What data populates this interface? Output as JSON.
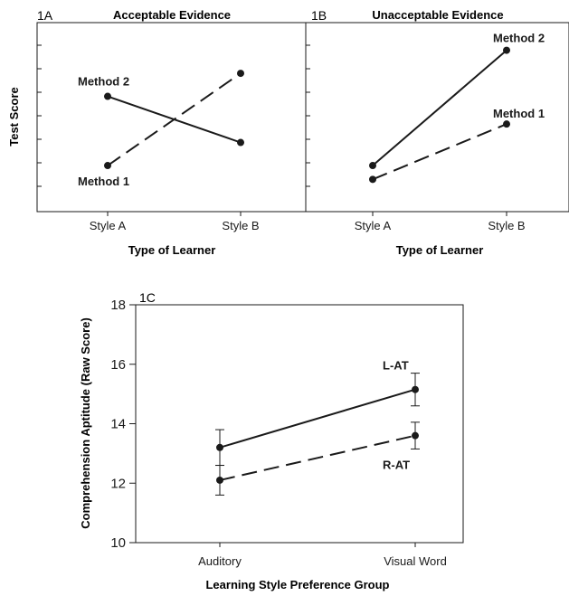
{
  "chart_data": [
    {
      "id": "1A",
      "type": "line",
      "panel_label": "1A",
      "title": "Acceptable Evidence",
      "xlabel": "Type of Learner",
      "ylabel": "Test Score",
      "categories": [
        "Style A",
        "Style B"
      ],
      "yticks_shown_as_marks_only": true,
      "ylim": [
        0,
        8.2
      ],
      "series": [
        {
          "name": "Method 2",
          "values": [
            5,
            3
          ],
          "style": "solid"
        },
        {
          "name": "Method 1",
          "values": [
            2,
            6
          ],
          "style": "dashed"
        }
      ]
    },
    {
      "id": "1B",
      "type": "line",
      "panel_label": "1B",
      "title": "Unacceptable Evidence",
      "xlabel": "Type of Learner",
      "categories": [
        "Style A",
        "Style B"
      ],
      "ylim": [
        0,
        8.2
      ],
      "series": [
        {
          "name": "Method 2",
          "values": [
            2,
            7
          ],
          "style": "solid"
        },
        {
          "name": "Method 1",
          "values": [
            1.4,
            3.8
          ],
          "style": "dashed"
        }
      ]
    },
    {
      "id": "1C",
      "type": "line",
      "panel_label": "1C",
      "xlabel": "Learning Style Preference Group",
      "ylabel": "Comprehension Aptitude (Raw Score)",
      "categories": [
        "Auditory",
        "Visual Word"
      ],
      "ylim": [
        10,
        18
      ],
      "yticks": [
        10,
        12,
        14,
        16,
        18
      ],
      "series": [
        {
          "name": "L-AT",
          "values": [
            13.2,
            15.15
          ],
          "error": [
            0.6,
            0.55
          ],
          "style": "solid"
        },
        {
          "name": "R-AT",
          "values": [
            12.1,
            13.6
          ],
          "error": [
            0.5,
            0.45
          ],
          "style": "dashed"
        }
      ]
    }
  ],
  "colors": {
    "ink": "#1a1a1a",
    "background": "#ffffff"
  }
}
